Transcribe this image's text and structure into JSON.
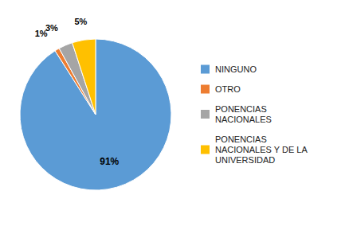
{
  "chart_data": {
    "type": "pie",
    "categories": [
      "NINGUNO",
      "OTRO",
      "PONENCIAS\nNACIONALES",
      "PONENCIAS\nNACIONALES Y DE LA\nUNIVERSIDAD"
    ],
    "values": [
      91,
      1,
      3,
      5
    ],
    "value_labels": [
      "91%",
      "1%",
      "3%",
      "5%"
    ],
    "colors": [
      "#5B9BD5",
      "#ED7D31",
      "#A5A5A5",
      "#FFC000"
    ],
    "data_labels": true,
    "legend": "right"
  }
}
